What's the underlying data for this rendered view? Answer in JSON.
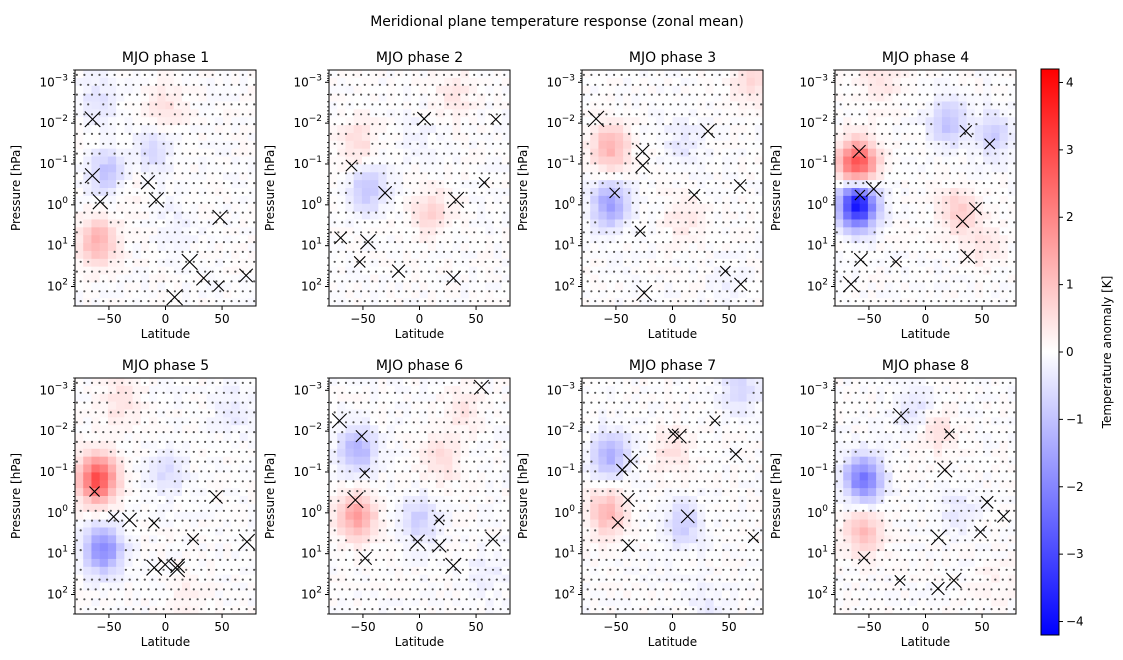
{
  "title": "Meridional plane temperature response (zonal mean)",
  "chart_data": {
    "type": "heatmap",
    "xlabel": "Latitude",
    "ylabel": "Pressure [hPa]",
    "xlim": [
      -80,
      80
    ],
    "x_ticks": [
      -50,
      0,
      50
    ],
    "y_scale": "log",
    "y_inverted": true,
    "ylim_hpa": [
      300,
      0.0005
    ],
    "y_ticks": [
      {
        "value": 0.001,
        "base": "10",
        "exp": "−3"
      },
      {
        "value": 0.01,
        "base": "10",
        "exp": "−2"
      },
      {
        "value": 0.1,
        "base": "10",
        "exp": "−1"
      },
      {
        "value": 1,
        "base": "10",
        "exp": "0"
      },
      {
        "value": 10,
        "base": "10",
        "exp": "1"
      },
      {
        "value": 100,
        "base": "10",
        "exp": "2"
      }
    ],
    "hatching": "dots: not significant; crosses: additional significance marker",
    "colorbar": {
      "label": "Temperature anomaly [K]",
      "range": [
        -4.2,
        4.2
      ],
      "ticks": [
        4,
        3,
        2,
        1,
        0,
        -1,
        -2,
        -3,
        -4
      ],
      "tick_labels": [
        "4",
        "3",
        "2",
        "1",
        "0",
        "−1",
        "−2",
        "−3",
        "−4"
      ],
      "colormap": "bwr",
      "low_color": "#0000ff",
      "mid_color": "#ffffff",
      "high_color": "#ff0000"
    },
    "panels": [
      {
        "title": "MJO phase 1",
        "blobs": [
          {
            "lat": -60,
            "p": 8,
            "amp": 1.3
          },
          {
            "lat": -50,
            "p": 0.18,
            "amp": -1.2
          },
          {
            "lat": -60,
            "p": 0.003,
            "amp": -0.5
          },
          {
            "lat": 0,
            "p": 0.005,
            "amp": 0.5
          },
          {
            "lat": -10,
            "p": 0.05,
            "amp": -0.6
          },
          {
            "lat": 10,
            "p": 3,
            "amp": -0.25
          },
          {
            "lat": -40,
            "p": 0.3,
            "amp": 0.4
          }
        ]
      },
      {
        "title": "MJO phase 2",
        "blobs": [
          {
            "lat": -45,
            "p": 0.4,
            "amp": -1.0
          },
          {
            "lat": -55,
            "p": 0.03,
            "amp": 0.6
          },
          {
            "lat": 10,
            "p": 1.5,
            "amp": 0.7
          },
          {
            "lat": 30,
            "p": 0.002,
            "amp": 0.4
          },
          {
            "lat": 0,
            "p": 0.02,
            "amp": -0.2
          }
        ]
      },
      {
        "title": "MJO phase 3",
        "blobs": [
          {
            "lat": -55,
            "p": 1,
            "amp": -1.6
          },
          {
            "lat": -55,
            "p": 0.04,
            "amp": 1.3
          },
          {
            "lat": 10,
            "p": 0.03,
            "amp": -0.4
          },
          {
            "lat": 70,
            "p": 0.001,
            "amp": 0.6
          },
          {
            "lat": 10,
            "p": 2,
            "amp": 0.4
          },
          {
            "lat": 50,
            "p": 100,
            "amp": -0.2
          }
        ]
      },
      {
        "title": "MJO phase 4",
        "blobs": [
          {
            "lat": -60,
            "p": 1,
            "amp": -4.0
          },
          {
            "lat": -60,
            "p": 0.1,
            "amp": 3.0
          },
          {
            "lat": 20,
            "p": 0.01,
            "amp": -1.0
          },
          {
            "lat": 60,
            "p": 0.02,
            "amp": -0.8
          },
          {
            "lat": 30,
            "p": 1.5,
            "amp": 0.9
          },
          {
            "lat": -40,
            "p": 0.001,
            "amp": 0.5
          },
          {
            "lat": 50,
            "p": 10,
            "amp": 0.4
          }
        ]
      },
      {
        "title": "MJO phase 5",
        "blobs": [
          {
            "lat": -60,
            "p": 0.15,
            "amp": 3.0
          },
          {
            "lat": -55,
            "p": 8,
            "amp": -2.0
          },
          {
            "lat": 0,
            "p": 0.1,
            "amp": -0.6
          },
          {
            "lat": 60,
            "p": 0.003,
            "amp": -0.4
          },
          {
            "lat": -40,
            "p": 0.002,
            "amp": 0.5
          },
          {
            "lat": 20,
            "p": 100,
            "amp": 0.2
          }
        ]
      },
      {
        "title": "MJO phase 6",
        "blobs": [
          {
            "lat": -55,
            "p": 1.2,
            "amp": 1.6
          },
          {
            "lat": -55,
            "p": 0.03,
            "amp": -1.3
          },
          {
            "lat": 0,
            "p": 1.5,
            "amp": -0.8
          },
          {
            "lat": 20,
            "p": 0.05,
            "amp": 0.6
          },
          {
            "lat": 40,
            "p": 0.003,
            "amp": 0.4
          },
          {
            "lat": 60,
            "p": 30,
            "amp": -0.3
          }
        ]
      },
      {
        "title": "MJO phase 7",
        "blobs": [
          {
            "lat": -55,
            "p": 0.04,
            "amp": -1.3
          },
          {
            "lat": -58,
            "p": 1,
            "amp": 1.2
          },
          {
            "lat": 10,
            "p": 2,
            "amp": -0.8
          },
          {
            "lat": 60,
            "p": 0.001,
            "amp": -0.7
          },
          {
            "lat": 0,
            "p": 0.03,
            "amp": 0.5
          },
          {
            "lat": 30,
            "p": 200,
            "amp": -0.3
          }
        ]
      },
      {
        "title": "MJO phase 8",
        "blobs": [
          {
            "lat": -55,
            "p": 0.15,
            "amp": -2.3
          },
          {
            "lat": -55,
            "p": 3,
            "amp": 1.1
          },
          {
            "lat": 10,
            "p": 0.01,
            "amp": 0.5
          },
          {
            "lat": 30,
            "p": 1,
            "amp": -0.4
          },
          {
            "lat": -10,
            "p": 0.003,
            "amp": -0.5
          },
          {
            "lat": 60,
            "p": 50,
            "amp": 0.2
          }
        ]
      }
    ]
  }
}
